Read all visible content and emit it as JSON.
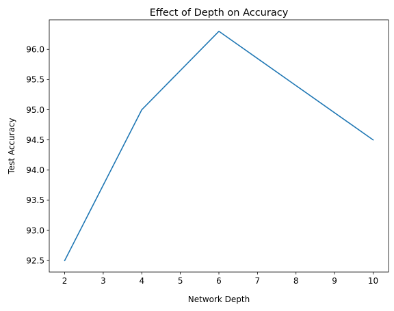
{
  "chart_data": {
    "type": "line",
    "title": "Effect of Depth on Accuracy",
    "xlabel": "Network Depth",
    "ylabel": "Test Accuracy",
    "x": [
      2,
      4,
      6,
      8,
      10
    ],
    "series": [
      {
        "values": [
          92.5,
          95.0,
          96.3,
          95.4,
          94.5
        ],
        "color": "#1f77b4"
      }
    ],
    "xlim": [
      1.6,
      10.4
    ],
    "ylim": [
      92.31,
      96.49
    ],
    "xticks": [
      2,
      3,
      4,
      5,
      6,
      7,
      8,
      9,
      10
    ],
    "yticks": [
      "92.5",
      "93.0",
      "93.5",
      "94.0",
      "94.5",
      "95.0",
      "95.5",
      "96.0"
    ],
    "grid": false,
    "legend": "none"
  }
}
